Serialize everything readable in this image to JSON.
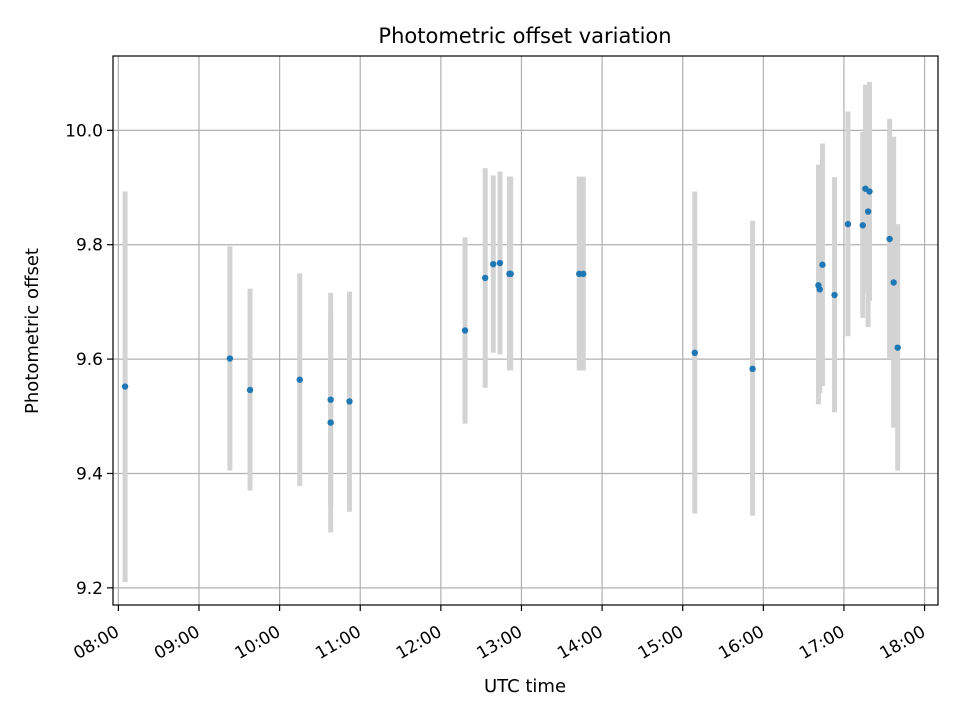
{
  "chart_data": {
    "type": "scatter",
    "title": "Photometric offset variation",
    "xlabel": "UTC time",
    "ylabel": "Photometric offset",
    "x_ticks": [
      "08:00",
      "09:00",
      "10:00",
      "11:00",
      "12:00",
      "13:00",
      "14:00",
      "15:00",
      "16:00",
      "17:00",
      "18:00"
    ],
    "y_ticks": [
      "9.2",
      "9.4",
      "9.6",
      "9.8",
      "10.0"
    ],
    "xlim": [
      "07:56",
      "18:10"
    ],
    "ylim": [
      9.17,
      10.13
    ],
    "grid": true,
    "series": [
      {
        "marker_color": "#1f77b4",
        "errorbar_color": "#d3d3d3",
        "points": [
          {
            "x": "08:05",
            "y": 9.552,
            "err_low": 9.21,
            "err_high": 9.893
          },
          {
            "x": "09:23",
            "y": 9.601,
            "err_low": 9.405,
            "err_high": 9.797
          },
          {
            "x": "09:38",
            "y": 9.546,
            "err_low": 9.37,
            "err_high": 9.723
          },
          {
            "x": "10:15",
            "y": 9.564,
            "err_low": 9.378,
            "err_high": 9.75
          },
          {
            "x": "10:38",
            "y": 9.529,
            "err_low": 9.342,
            "err_high": 9.716
          },
          {
            "x": "10:38",
            "y": 9.489,
            "err_low": 9.297,
            "err_high": 9.68
          },
          {
            "x": "10:52",
            "y": 9.526,
            "err_low": 9.333,
            "err_high": 9.718
          },
          {
            "x": "12:18",
            "y": 9.65,
            "err_low": 9.487,
            "err_high": 9.813
          },
          {
            "x": "12:33",
            "y": 9.742,
            "err_low": 9.55,
            "err_high": 9.934
          },
          {
            "x": "12:39",
            "y": 9.766,
            "err_low": 9.611,
            "err_high": 9.921
          },
          {
            "x": "12:44",
            "y": 9.768,
            "err_low": 9.608,
            "err_high": 9.928
          },
          {
            "x": "12:51",
            "y": 9.749,
            "err_low": 9.58,
            "err_high": 9.919
          },
          {
            "x": "12:52",
            "y": 9.749,
            "err_low": 9.58,
            "err_high": 9.919
          },
          {
            "x": "13:43",
            "y": 9.749,
            "err_low": 9.58,
            "err_high": 9.919
          },
          {
            "x": "13:46",
            "y": 9.749,
            "err_low": 9.58,
            "err_high": 9.919
          },
          {
            "x": "15:09",
            "y": 9.611,
            "err_low": 9.33,
            "err_high": 9.893
          },
          {
            "x": "15:52",
            "y": 9.583,
            "err_low": 9.326,
            "err_high": 9.842
          },
          {
            "x": "16:41",
            "y": 9.729,
            "err_low": 9.521,
            "err_high": 9.94
          },
          {
            "x": "16:42",
            "y": 9.722,
            "err_low": 9.54,
            "err_high": 9.9
          },
          {
            "x": "16:44",
            "y": 9.765,
            "err_low": 9.553,
            "err_high": 9.977
          },
          {
            "x": "16:53",
            "y": 9.712,
            "err_low": 9.507,
            "err_high": 9.918
          },
          {
            "x": "17:03",
            "y": 9.836,
            "err_low": 9.64,
            "err_high": 10.033
          },
          {
            "x": "17:14",
            "y": 9.834,
            "err_low": 9.672,
            "err_high": 9.997
          },
          {
            "x": "17:16",
            "y": 9.898,
            "err_low": 9.716,
            "err_high": 10.08
          },
          {
            "x": "17:18",
            "y": 9.858,
            "err_low": 9.656,
            "err_high": 10.06
          },
          {
            "x": "17:19",
            "y": 9.893,
            "err_low": 9.702,
            "err_high": 10.085
          },
          {
            "x": "17:34",
            "y": 9.81,
            "err_low": 9.6,
            "err_high": 10.02
          },
          {
            "x": "17:37",
            "y": 9.734,
            "err_low": 9.48,
            "err_high": 9.989
          },
          {
            "x": "17:40",
            "y": 9.62,
            "err_low": 9.405,
            "err_high": 9.836
          }
        ]
      }
    ]
  }
}
